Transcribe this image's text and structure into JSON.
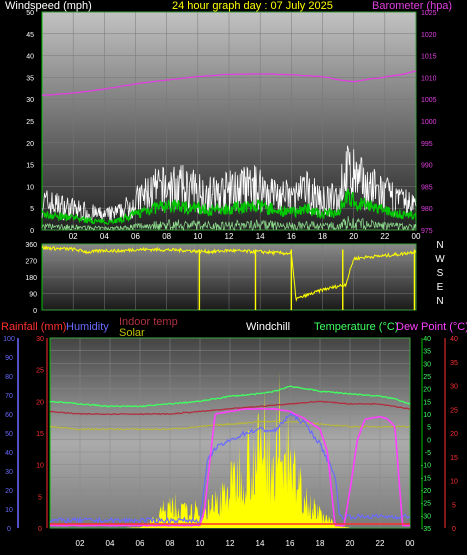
{
  "title": "24 hour graph day : 07 July 2025",
  "colors": {
    "windspeed": "#ffffff",
    "wind_avg": "#00c800",
    "barometer": "#e040e0",
    "direction": "#ffff00",
    "rainfall": "#ff3030",
    "humidity": "#6a6aff",
    "indoor_temp": "#b03040",
    "solar": "#ffff00",
    "windchill": "#ffffff",
    "temperature": "#40ff60",
    "dew_point": "#ff40ff",
    "axis_green": "#00c000"
  },
  "chart_data": [
    {
      "type": "line",
      "labels": {
        "left": "Windspeed (mph)",
        "right": "Barometer (hpa)"
      },
      "left_ticks": [
        "0",
        "5",
        "10",
        "15",
        "20",
        "25",
        "30",
        "35",
        "40",
        "45",
        "50"
      ],
      "right_ticks": [
        "975",
        "980",
        "985",
        "990",
        "995",
        "1000",
        "1005",
        "1010",
        "1015",
        "1020",
        "1025"
      ],
      "ylim_left": [
        0,
        50
      ],
      "ylim_right": [
        975,
        1025
      ],
      "x_ticks": [
        "02",
        "04",
        "06",
        "08",
        "10",
        "12",
        "14",
        "16",
        "18",
        "20",
        "22",
        "00"
      ],
      "series": [
        {
          "name": "Windspeed (mph)",
          "x": [
            0,
            1,
            2,
            3,
            4,
            5,
            6,
            7,
            8,
            9,
            10,
            11,
            12,
            13,
            14,
            15,
            16,
            17,
            18,
            19,
            19.5,
            20,
            21,
            22,
            23,
            24
          ],
          "values": [
            8,
            7,
            6,
            5,
            4,
            5,
            8,
            11,
            12,
            12,
            11,
            10,
            11,
            12,
            12,
            10,
            9,
            11,
            8,
            9,
            17,
            15,
            12,
            10,
            8,
            7
          ]
        },
        {
          "name": "Barometer (hpa)",
          "x": [
            0,
            2,
            4,
            6,
            8,
            10,
            12,
            14,
            16,
            18,
            19,
            20,
            21,
            22,
            23,
            24
          ],
          "values": [
            1005.9,
            1006.4,
            1007.3,
            1008.5,
            1009.4,
            1010.2,
            1010.7,
            1010.8,
            1010.6,
            1010.2,
            1009.5,
            1009.0,
            1009.6,
            1010.1,
            1010.6,
            1011.5
          ]
        }
      ]
    },
    {
      "type": "line",
      "left_ticks": [
        "0",
        "90",
        "180",
        "270",
        "360"
      ],
      "ylim": [
        0,
        360
      ],
      "dir_labels": [
        "N",
        "W",
        "S",
        "E",
        "N"
      ],
      "series": [
        {
          "name": "Wind direction",
          "x": [
            0,
            1,
            2,
            3,
            4,
            5,
            6,
            7,
            8,
            9,
            10,
            11,
            12,
            13,
            14,
            15,
            16,
            16.3,
            17,
            18,
            19,
            19.5,
            20,
            21,
            22,
            23,
            24
          ],
          "values": [
            340,
            335,
            332,
            315,
            325,
            322,
            330,
            330,
            328,
            326,
            320,
            318,
            325,
            320,
            318,
            312,
            308,
            60,
            80,
            110,
            130,
            140,
            280,
            290,
            296,
            305,
            320
          ]
        }
      ]
    },
    {
      "type": "line",
      "labels": {
        "rainfall": "Rainfall (mm)",
        "humidity": "Humidity",
        "indoor": "Indoor temp",
        "solar": "Solar",
        "windchill": "Windchill",
        "temperature": "Temperature (°C)",
        "dewpoint": "Dew Point (°C)"
      },
      "ticks_humidity": [
        "0",
        "10",
        "20",
        "30",
        "40",
        "50",
        "60",
        "70",
        "80",
        "90",
        "100"
      ],
      "ticks_rain": [
        "0",
        "5",
        "10",
        "15",
        "20",
        "25",
        "30"
      ],
      "ticks_temp": [
        "-35",
        "-30",
        "-25",
        "-20",
        "-15",
        "-10",
        "-5",
        "0",
        "5",
        "10",
        "15",
        "20",
        "25",
        "30",
        "35",
        "40"
      ],
      "ticks_dew": [
        "0",
        "5",
        "10",
        "15",
        "20",
        "25",
        "30",
        "35",
        "40"
      ],
      "ylim_temp": [
        -35,
        40
      ],
      "ylim_humidity": [
        0,
        100
      ],
      "x_ticks": [
        "02",
        "04",
        "06",
        "08",
        "10",
        "12",
        "14",
        "16",
        "18",
        "20",
        "22",
        "00"
      ],
      "series": [
        {
          "name": "Temperature (°C)",
          "x": [
            0,
            2,
            4,
            6,
            8,
            10,
            12,
            14,
            15,
            16,
            17,
            18,
            20,
            22,
            23,
            24
          ],
          "values": [
            15,
            14,
            13,
            13,
            14,
            15,
            17,
            18,
            19,
            21,
            20,
            19,
            18,
            17,
            16,
            14
          ]
        },
        {
          "name": "Indoor temp",
          "x": [
            0,
            2,
            4,
            6,
            8,
            10,
            12,
            14,
            16,
            18,
            20,
            22,
            24
          ],
          "values": [
            11,
            10,
            10,
            10,
            10,
            11,
            12,
            13,
            14,
            15,
            14,
            14,
            12
          ]
        },
        {
          "name": "Dew Point (°C)",
          "x": [
            0,
            6,
            10,
            10.3,
            11,
            12,
            13,
            14,
            15,
            16,
            17,
            18,
            18.5,
            19,
            19.3,
            19.6,
            20,
            20.5,
            21,
            22,
            22.5,
            23,
            23.5,
            24
          ],
          "values": [
            -34,
            -34,
            -34,
            -28,
            10,
            11,
            12,
            12,
            12,
            11,
            8,
            4,
            -5,
            -34,
            -34,
            -34,
            -20,
            0,
            8,
            9,
            8,
            5,
            -34,
            -34
          ]
        },
        {
          "name": "Humidity",
          "x": [
            0,
            10,
            10.5,
            11,
            12,
            13,
            14,
            15,
            16,
            17,
            18,
            19,
            19.3,
            20,
            21,
            22,
            23,
            24
          ],
          "values": [
            4,
            4,
            35,
            42,
            46,
            50,
            52,
            51,
            60,
            55,
            44,
            28,
            6,
            6,
            6,
            6,
            6,
            6
          ]
        },
        {
          "name": "Solar",
          "x": [
            0,
            5,
            6,
            7,
            8,
            9,
            10,
            11,
            12,
            13,
            14,
            15,
            16,
            17,
            18,
            19,
            20,
            24
          ],
          "values": [
            0,
            0,
            0.5,
            5,
            12,
            10,
            8,
            15,
            25,
            40,
            45,
            40,
            35,
            20,
            8,
            2,
            0,
            0
          ]
        },
        {
          "name": "Windchill",
          "x": [
            0,
            2,
            4,
            6,
            8,
            10,
            12,
            14,
            16,
            18,
            20,
            22,
            24
          ],
          "values": [
            5,
            4,
            4,
            4,
            4,
            5,
            6,
            7,
            7,
            6,
            5,
            5,
            5
          ]
        }
      ]
    }
  ]
}
